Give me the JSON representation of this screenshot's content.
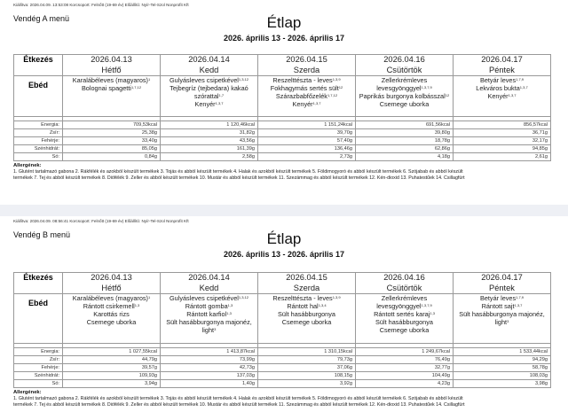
{
  "menus": [
    {
      "issued": "Kiállítva: 2026.04.09. 13:53:08 Korcsoport: Felnőtt (19-69 év) Előállító: Nyír-Tel-Szol Nonprofit Kft",
      "guest": "Vendég A menü",
      "title": "Étlap",
      "range": "2026. április 13 - 2026. április 17",
      "meal_col_label": "Étkezés",
      "meal_label": "Ebéd",
      "days": [
        {
          "date": "2026.04.13",
          "day": "Hétfő",
          "dishes": [
            {
              "name": "Karalábéleves (magyaros)",
              "alg": "1"
            },
            {
              "name": "Bolognai spagetti",
              "alg": "1,7,12"
            }
          ]
        },
        {
          "date": "2026.04.14",
          "day": "Kedd",
          "dishes": [
            {
              "name": "Gulyásleves csipetkével",
              "alg": "1,3,12"
            },
            {
              "name": "Tejbegríz (tejbedara) kakaó szórattal",
              "alg": "1,7"
            },
            {
              "name": "Kenyér",
              "alg": "1,3,7"
            }
          ]
        },
        {
          "date": "2026.04.15",
          "day": "Szerda",
          "dishes": [
            {
              "name": "Reszelttészta - leves",
              "alg": "1,3,9"
            },
            {
              "name": "Fokhagymás sertés sült",
              "alg": "12"
            },
            {
              "name": "Szárazbabfőzelék",
              "alg": "1,7,12"
            },
            {
              "name": "Kenyér",
              "alg": "1,3,7"
            }
          ]
        },
        {
          "date": "2026.04.16",
          "day": "Csütörtök",
          "dishes": [
            {
              "name": "Zellerkrémleves levesgyönggyel",
              "alg": "1,3,7,9"
            },
            {
              "name": "Paprikás burgonya kolbásszal",
              "alg": "12"
            },
            {
              "name": "Csemege uborka",
              "alg": ""
            }
          ]
        },
        {
          "date": "2026.04.17",
          "day": "Péntek",
          "dishes": [
            {
              "name": "Betyár leves",
              "alg": "1,7,9"
            },
            {
              "name": "Lekváros bukta",
              "alg": "1,3,7"
            },
            {
              "name": "Kenyér",
              "alg": "1,3,7"
            }
          ]
        }
      ],
      "nutrition": [
        {
          "label": "Energia:",
          "values": [
            "709,53kcal",
            "1 120,46kcal",
            "1 151,24kcal",
            "691,56kcal",
            "856,57kcal"
          ]
        },
        {
          "label": "Zsír:",
          "values": [
            "25,38g",
            "31,82g",
            "39,70g",
            "39,80g",
            "36,71g"
          ]
        },
        {
          "label": "Fehérje:",
          "values": [
            "33,40g",
            "43,56g",
            "57,40g",
            "18,78g",
            "32,17g"
          ]
        },
        {
          "label": "Szénhidrát:",
          "values": [
            "85,05g",
            "161,39g",
            "136,46g",
            "62,86g",
            "94,85g"
          ]
        },
        {
          "label": "Só:",
          "values": [
            "0,84g",
            "2,58g",
            "2,73g",
            "4,18g",
            "2,61g"
          ]
        }
      ],
      "allergens_title": "Allergének:",
      "allergens_lines": [
        "1. Glutént tartalmazó gabona 2. Rákfélék és azokból készült termékek 3. Tojás és abból készült termékek 4. Halak és azokból készült termékek 5. Földimogyoró és abból készült termékek 6. Szójabab és abból készült",
        "termékek 7. Tej és abból készült termékek 8. Diófélék 9. Zeller és abból készült termékek 10. Mustár és abból készült termékek 11. Szezámmag és abból készült termékek 12. Kén-dioxid 13. Puhatestűek 14. Csillagfürt"
      ]
    },
    {
      "issued": "Kiállítva: 2026.04.09. 08:56:41 Korcsoport: Felnőtt (19-69 év) Előállító: Nyír-Tel-Szol Nonprofit Kft",
      "guest": "Vendég B menü",
      "title": "Étlap",
      "range": "2026. április 13 - 2026. április 17",
      "meal_col_label": "Étkezés",
      "meal_label": "Ebéd",
      "days": [
        {
          "date": "2026.04.13",
          "day": "Hétfő",
          "dishes": [
            {
              "name": "Karalábéleves (magyaros)",
              "alg": "1"
            },
            {
              "name": "Rántott csirkemell",
              "alg": "1,3"
            },
            {
              "name": "Karottás rizs",
              "alg": ""
            },
            {
              "name": "Csemege uborka",
              "alg": ""
            }
          ]
        },
        {
          "date": "2026.04.14",
          "day": "Kedd",
          "dishes": [
            {
              "name": "Gulyásleves csipetkével",
              "alg": "1,3,12"
            },
            {
              "name": "Rántott gomba",
              "alg": "1,3"
            },
            {
              "name": "Rántott karfiol",
              "alg": "1,3"
            },
            {
              "name": "Sült hasábburgonya majonéz, light",
              "alg": "3"
            }
          ]
        },
        {
          "date": "2026.04.15",
          "day": "Szerda",
          "dishes": [
            {
              "name": "Reszelttészta - leves",
              "alg": "1,3,9"
            },
            {
              "name": "Rántott hal",
              "alg": "1,3,4"
            },
            {
              "name": "Sült hasábburgonya",
              "alg": ""
            },
            {
              "name": "Csemege uborka",
              "alg": ""
            }
          ]
        },
        {
          "date": "2026.04.16",
          "day": "Csütörtök",
          "dishes": [
            {
              "name": "Zellerkrémleves levesgyönggyel",
              "alg": "1,3,7,9"
            },
            {
              "name": "Rántott sertés karaj",
              "alg": "1,3"
            },
            {
              "name": "Sült hasábburgonya",
              "alg": ""
            },
            {
              "name": "Csemege uborka",
              "alg": ""
            }
          ]
        },
        {
          "date": "2026.04.17",
          "day": "Péntek",
          "dishes": [
            {
              "name": "Betyár leves",
              "alg": "1,7,9"
            },
            {
              "name": "Rántott sajt",
              "alg": "1,3,7"
            },
            {
              "name": "Sült hasábburgonya majonéz, light",
              "alg": "3"
            }
          ]
        }
      ],
      "nutrition": [
        {
          "label": "Energia:",
          "values": [
            "1 027,55kcal",
            "1 413,87kcal",
            "1 310,15kcal",
            "1 249,67kcal",
            "1 533,44kcal"
          ]
        },
        {
          "label": "Zsír:",
          "values": [
            "44,79g",
            "73,99g",
            "79,73g",
            "76,49g",
            "94,29g"
          ]
        },
        {
          "label": "Fehérje:",
          "values": [
            "39,57g",
            "42,73g",
            "37,06g",
            "32,77g",
            "58,78g"
          ]
        },
        {
          "label": "Szénhidrát:",
          "values": [
            "109,93g",
            "137,03g",
            "108,15g",
            "104,49g",
            "108,03g"
          ]
        },
        {
          "label": "Só:",
          "values": [
            "3,94g",
            "1,40g",
            "3,92g",
            "4,23g",
            "3,98g"
          ]
        }
      ],
      "allergens_title": "Allergének:",
      "allergens_lines": [
        "1. Glutént tartalmazó gabona 2. Rákfélék és azokból készült termékek 3. Tojás és abból készült termékek 4. Halak és azokból készült termékek 5. Földimogyoró és abból készült termékek 6. Szójabab és abból készült",
        "termékek 7. Tej és abból készült termékek 8. Diófélék 9. Zeller és abból készült termékek 10. Mustár és abból készült termékek 11. Szezámmag és abból készült termékek 12. Kén-dioxid 13. Puhatestűek 14. Csillagfürt"
      ]
    }
  ]
}
